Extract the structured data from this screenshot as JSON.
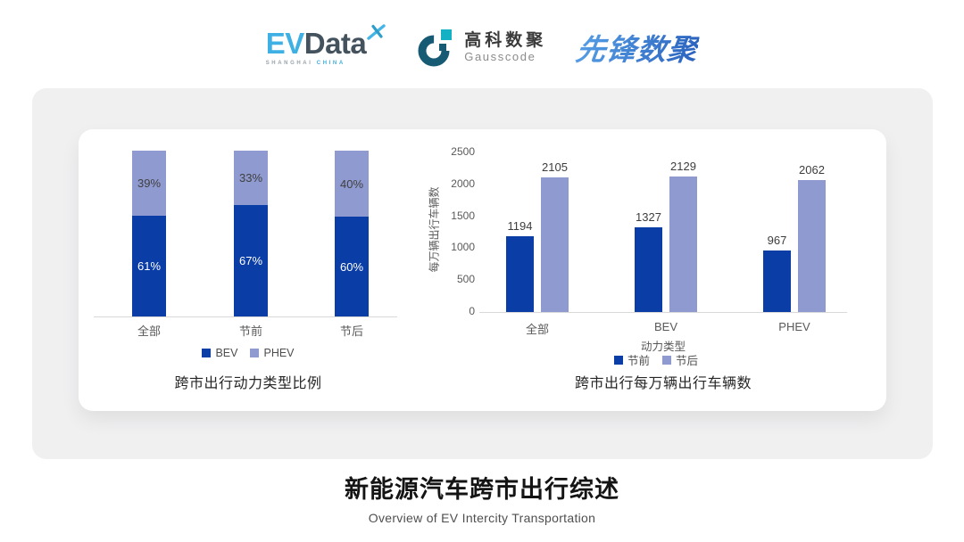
{
  "header": {
    "evdata": {
      "ev": "EV",
      "data": "Data",
      "sub_left": "SHANGHAI",
      "sub_right": "CHINA"
    },
    "gausscode": {
      "cn": "高科数聚",
      "en": "Gausscode"
    },
    "pioneer": {
      "text": "先锋数聚"
    }
  },
  "footer": {
    "title": "新能源汽车跨市出行综述",
    "subtitle": "Overview of EV Intercity Transportation"
  },
  "colors": {
    "series_dark_blue": "#0b3da6",
    "series_light_blue": "#8f9ad0",
    "panel_gray": "#f0f0f1",
    "evdata_blue": "#3fb0e4",
    "evdata_slate": "#44525e",
    "gauss_teal": "#14b0c4",
    "gauss_dark": "#175a73",
    "pioneer_blue": "#3577cd"
  },
  "chart_data": [
    {
      "type": "bar",
      "variant": "stacked-100-percent",
      "title": "跨市出行动力类型比例",
      "categories": [
        "全部",
        "节前",
        "节后"
      ],
      "series": [
        {
          "name": "BEV",
          "color": "#0b3da6",
          "values": [
            61,
            67,
            60
          ],
          "unit": "%",
          "label_color": "#ffffff"
        },
        {
          "name": "PHEV",
          "color": "#8f9ad0",
          "values": [
            39,
            33,
            40
          ],
          "unit": "%",
          "label_color": "#404040"
        }
      ],
      "legend_position": "bottom",
      "value_labels": "inside",
      "grid": false
    },
    {
      "type": "bar",
      "variant": "grouped",
      "title": "跨市出行每万辆出行车辆数",
      "categories": [
        "全部",
        "BEV",
        "PHEV"
      ],
      "xlabel": "动力类型",
      "ylabel": "每万辆出行车辆数",
      "ylim": [
        0,
        2500
      ],
      "yticks": [
        0,
        500,
        1000,
        1500,
        2000,
        2500
      ],
      "series": [
        {
          "name": "节前",
          "color": "#0b3da6",
          "values": [
            1194,
            1327,
            967
          ]
        },
        {
          "name": "节后",
          "color": "#8f9ad0",
          "values": [
            2105,
            2129,
            2062
          ]
        }
      ],
      "legend_position": "bottom",
      "value_labels": "above",
      "grid": false
    }
  ]
}
